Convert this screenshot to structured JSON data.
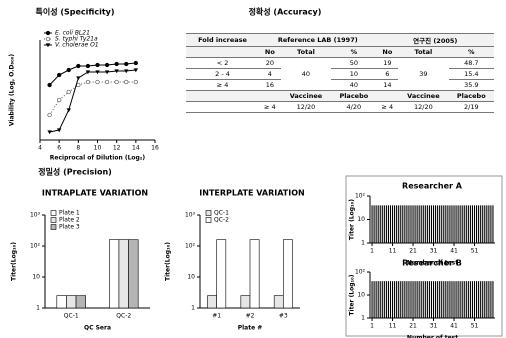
{
  "chart_data": [
    {
      "type": "line",
      "title": "특이성 (Specificity)",
      "x_label": "Reciprocal of Dilution (Log₂)",
      "y_label": "Viability (Log, O.D₆₀₀)",
      "x": [
        5,
        6,
        7,
        8,
        9,
        10,
        11,
        12,
        13,
        14
      ],
      "xlim": [
        4,
        16
      ],
      "xticks": [
        4,
        6,
        8,
        10,
        12,
        14,
        16
      ],
      "ylim": [
        0,
        1
      ],
      "series": [
        {
          "name": "E. coli BL21",
          "color": "#000000",
          "marker": "filled-circle",
          "line_style": "solid",
          "values": [
            0.55,
            0.65,
            0.7,
            0.74,
            0.74,
            0.75,
            0.75,
            0.76,
            0.76,
            0.77
          ]
        },
        {
          "name": "S. typhi Ty21a",
          "color": "#555555",
          "marker": "open-circle",
          "line_style": "dotted",
          "values": [
            0.25,
            0.4,
            0.48,
            0.55,
            0.58,
            0.58,
            0.58,
            0.58,
            0.58,
            0.58
          ]
        },
        {
          "name": "V. cholerae O1",
          "color": "#000000",
          "marker": "triangle",
          "line_style": "solid",
          "values": [
            0.08,
            0.1,
            0.3,
            0.62,
            0.68,
            0.68,
            0.68,
            0.69,
            0.69,
            0.7
          ]
        }
      ]
    },
    {
      "type": "bar",
      "title": "INTRAPLATE VARIATION",
      "x_label": "QC Sera",
      "y_label": "Titer(Log₁₀)",
      "log_scale": true,
      "categories": [
        "QC-1",
        "QC-2"
      ],
      "ylim": [
        1,
        1000
      ],
      "yticks": [
        1,
        10,
        {
          "value": 100,
          "label": "10²"
        },
        {
          "value": 1000,
          "label": "10³"
        }
      ],
      "series": [
        {
          "name": "Plate 1",
          "color": "#ffffff",
          "values": [
            2.5,
            160
          ]
        },
        {
          "name": "Plate 2",
          "color": "#e6e6e6",
          "values": [
            2.5,
            160
          ]
        },
        {
          "name": "Plate 3",
          "color": "#b5b5b5",
          "values": [
            2.5,
            160
          ]
        }
      ]
    },
    {
      "type": "bar",
      "title": "INTERPLATE  VARIATION",
      "x_label": "Plate #",
      "y_label": "Titer(Log₁₀)",
      "log_scale": true,
      "categories": [
        "#1",
        "#2",
        "#3"
      ],
      "ylim": [
        1,
        1000
      ],
      "yticks": [
        1,
        10,
        {
          "value": 100,
          "label": "10²"
        },
        {
          "value": 1000,
          "label": "10³"
        }
      ],
      "series": [
        {
          "name": "QC-1",
          "color": "#e6e6e6",
          "values": [
            2.5,
            2.5,
            2.5
          ]
        },
        {
          "name": "QC-2",
          "color": "#ffffff",
          "values": [
            160,
            160,
            160
          ]
        }
      ]
    },
    {
      "type": "spikes",
      "title": "Researcher A",
      "x_label": "Number of test",
      "y_label": "Titer (Log₁₀)",
      "log_scale": true,
      "color": "#000000",
      "x": [
        1,
        2,
        3,
        4,
        5,
        6,
        7,
        8,
        9,
        10,
        11,
        12,
        13,
        14,
        15,
        16,
        17,
        18,
        19,
        20,
        21,
        22,
        23,
        24,
        25,
        26,
        27,
        28,
        29,
        30,
        31,
        32,
        33,
        34,
        35,
        36,
        37,
        38,
        39,
        40,
        41,
        42,
        43,
        44,
        45,
        46,
        47,
        48,
        49,
        50,
        51,
        52,
        53,
        54,
        55,
        56,
        57,
        58,
        59,
        60
      ],
      "values": [
        40,
        40,
        40,
        40,
        40,
        40,
        40,
        40,
        40,
        40,
        40,
        40,
        40,
        40,
        40,
        40,
        40,
        40,
        40,
        40,
        40,
        40,
        40,
        40,
        40,
        40,
        40,
        40,
        40,
        40,
        40,
        40,
        40,
        40,
        40,
        40,
        40,
        40,
        40,
        40,
        40,
        40,
        40,
        40,
        40,
        40,
        40,
        40,
        40,
        40,
        40,
        40,
        40,
        40,
        40,
        40,
        40,
        40,
        40,
        40
      ],
      "xlim": [
        0,
        61
      ],
      "xticks": [
        1,
        11,
        21,
        31,
        41,
        51
      ],
      "ylim": [
        1,
        100
      ],
      "yticks": [
        1,
        10,
        {
          "value": 100,
          "label": "10²"
        }
      ]
    },
    {
      "type": "spikes",
      "title": "Researcher B",
      "x_label": "Number of test",
      "y_label": "Titer (Log₁₀)",
      "log_scale": true,
      "color": "#000000",
      "x": [
        1,
        2,
        3,
        4,
        5,
        6,
        7,
        8,
        9,
        10,
        11,
        12,
        13,
        14,
        15,
        16,
        17,
        18,
        19,
        20,
        21,
        22,
        23,
        24,
        25,
        26,
        27,
        28,
        29,
        30,
        31,
        32,
        33,
        34,
        35,
        36,
        37,
        38,
        39,
        40,
        41,
        42,
        43,
        44,
        45,
        46,
        47,
        48,
        49,
        50,
        51,
        52,
        53,
        54,
        55,
        56,
        57,
        58,
        59,
        60
      ],
      "values": [
        40,
        40,
        40,
        40,
        40,
        40,
        40,
        40,
        40,
        40,
        40,
        40,
        40,
        40,
        40,
        40,
        40,
        40,
        40,
        40,
        40,
        40,
        40,
        40,
        40,
        40,
        40,
        40,
        40,
        40,
        40,
        40,
        40,
        40,
        40,
        40,
        40,
        40,
        40,
        40,
        40,
        40,
        40,
        40,
        40,
        40,
        40,
        40,
        40,
        40,
        40,
        40,
        40,
        40,
        40,
        40,
        40,
        40,
        40,
        40
      ],
      "xlim": [
        0,
        61
      ],
      "xticks": [
        1,
        11,
        21,
        31,
        41,
        51
      ],
      "ylim": [
        1,
        100
      ],
      "yticks": [
        1,
        10,
        {
          "value": 100,
          "label": "10²"
        }
      ]
    }
  ],
  "accuracy": {
    "title": "정확성 (Accuracy)",
    "header": [
      "Fold increase",
      "Reference LAB (1997)",
      "연구진 (2005)"
    ],
    "subheader": [
      "No",
      "Total",
      "%",
      "No",
      "Total",
      "%"
    ],
    "rows": [
      [
        "< 2",
        20,
        40,
        50,
        19,
        39,
        48.7
      ],
      [
        "2 - 4",
        4,
        10,
        6,
        15.4
      ],
      [
        "≥ 4",
        16,
        40,
        14,
        35.9
      ]
    ],
    "group_header": [
      "Vaccinee",
      "Placebo",
      "Vaccinee",
      "Placebo"
    ],
    "group_row": [
      "≥ 4",
      "12/20",
      "4/20",
      "≥ 4",
      "12/20",
      "2/19"
    ]
  },
  "precision_title": "정밀성 (Precision)"
}
